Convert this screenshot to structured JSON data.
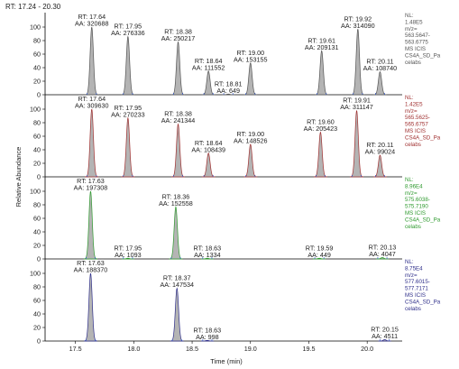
{
  "header": {
    "range_label": "RT: 17.24 - 20.30"
  },
  "chart_data": {
    "type": "line",
    "xlabel": "Time (min)",
    "ylabel": "Relative Abundance",
    "xlim": [
      17.24,
      20.3
    ],
    "ylim": [
      0,
      100
    ],
    "x_ticks": [
      "17.5",
      "18.0",
      "18.5",
      "19.0",
      "19.5",
      "20.0"
    ],
    "y_ticks": [
      "100",
      "80",
      "60",
      "40",
      "20",
      "0"
    ],
    "panels": [
      {
        "nl": "NL:",
        "nl_value": "1.48E5",
        "filter_lines": [
          "m/z=",
          "563.5647-",
          "563.6775",
          "MS ICIS",
          "CS4A_SD_Pa",
          "celabs"
        ],
        "color": "#555555",
        "fill": "#b4b4b4",
        "peaks": [
          {
            "rt_label": "RT: 17.64",
            "aa_label": "AA: 320688",
            "rt": 17.64,
            "height": 100
          },
          {
            "rt_label": "RT: 17.95",
            "aa_label": "AA: 276336",
            "rt": 17.95,
            "height": 86
          },
          {
            "rt_label": "RT: 18.38",
            "aa_label": "AA: 250217",
            "rt": 18.38,
            "height": 78
          },
          {
            "rt_label": "RT: 18.64",
            "aa_label": "AA: 111552",
            "rt": 18.64,
            "height": 35
          },
          {
            "rt_label": "RT: 18.81",
            "aa_label": "AA: 649",
            "rt": 18.81,
            "height": 1
          },
          {
            "rt_label": "RT: 19.00",
            "aa_label": "AA: 153155",
            "rt": 19.0,
            "height": 47
          },
          {
            "rt_label": "RT: 19.61",
            "aa_label": "AA: 209131",
            "rt": 19.61,
            "height": 65
          },
          {
            "rt_label": "RT: 19.92",
            "aa_label": "AA: 314090",
            "rt": 19.92,
            "height": 97
          },
          {
            "rt_label": "RT: 20.11",
            "aa_label": "AA: 108740",
            "rt": 20.11,
            "height": 34
          }
        ]
      },
      {
        "nl": "NL:",
        "nl_value": "1.42E5",
        "filter_lines": [
          "m/z=",
          "565.5625-",
          "565.6757",
          "MS ICIS",
          "CS4A_SD_Pa",
          "celabs"
        ],
        "color": "#a03030",
        "fill": "#b4b4b4",
        "peaks": [
          {
            "rt_label": "RT: 17.64",
            "aa_label": "AA: 309630",
            "rt": 17.64,
            "height": 100
          },
          {
            "rt_label": "RT: 17.95",
            "aa_label": "AA: 270233",
            "rt": 17.95,
            "height": 87
          },
          {
            "rt_label": "RT: 18.38",
            "aa_label": "AA: 241344",
            "rt": 18.38,
            "height": 78
          },
          {
            "rt_label": "RT: 18.64",
            "aa_label": "AA: 108439",
            "rt": 18.64,
            "height": 35
          },
          {
            "rt_label": "RT: 19.00",
            "aa_label": "AA: 148526",
            "rt": 19.0,
            "height": 48
          },
          {
            "rt_label": "RT: 19.60",
            "aa_label": "AA: 205423",
            "rt": 19.6,
            "height": 66
          },
          {
            "rt_label": "RT: 19.91",
            "aa_label": "AA: 311147",
            "rt": 19.91,
            "height": 98
          },
          {
            "rt_label": "RT: 20.11",
            "aa_label": "AA: 99024",
            "rt": 20.11,
            "height": 32
          }
        ]
      },
      {
        "nl": "NL:",
        "nl_value": "8.96E4",
        "filter_lines": [
          "m/z=",
          "575.6038-",
          "575.7190",
          "MS ICIS",
          "CS4A_SD_Pa",
          "celabs"
        ],
        "color": "#2e9a2e",
        "fill": "#b4b4b4",
        "peaks": [
          {
            "rt_label": "RT: 17.63",
            "aa_label": "AA: 197308",
            "rt": 17.63,
            "height": 100
          },
          {
            "rt_label": "RT: 17.95",
            "aa_label": "AA: 1093",
            "rt": 17.95,
            "height": 1
          },
          {
            "rt_label": "RT: 18.36",
            "aa_label": "AA: 152558",
            "rt": 18.36,
            "height": 77
          },
          {
            "rt_label": "RT: 18.63",
            "aa_label": "AA: 1334",
            "rt": 18.63,
            "height": 1
          },
          {
            "rt_label": "RT: 19.59",
            "aa_label": "AA: 449",
            "rt": 19.59,
            "height": 1
          },
          {
            "rt_label": "RT: 20.13",
            "aa_label": "AA: 4047",
            "rt": 20.13,
            "height": 2
          }
        ]
      },
      {
        "nl": "NL:",
        "nl_value": "8.75E4",
        "filter_lines": [
          "m/z=",
          "577.6015-",
          "577.7171",
          "MS ICIS",
          "CS4A_SD_Pa",
          "celabs"
        ],
        "color": "#2e2e8a",
        "fill": "#b4b4b4",
        "peaks": [
          {
            "rt_label": "RT: 17.63",
            "aa_label": "AA: 188370",
            "rt": 17.63,
            "height": 100
          },
          {
            "rt_label": "RT: 18.37",
            "aa_label": "AA: 147534",
            "rt": 18.37,
            "height": 78
          },
          {
            "rt_label": "RT: 18.63",
            "aa_label": "AA: 998",
            "rt": 18.63,
            "height": 1
          },
          {
            "rt_label": "RT: 20.15",
            "aa_label": "AA: 4511",
            "rt": 20.15,
            "height": 2
          }
        ]
      }
    ]
  }
}
